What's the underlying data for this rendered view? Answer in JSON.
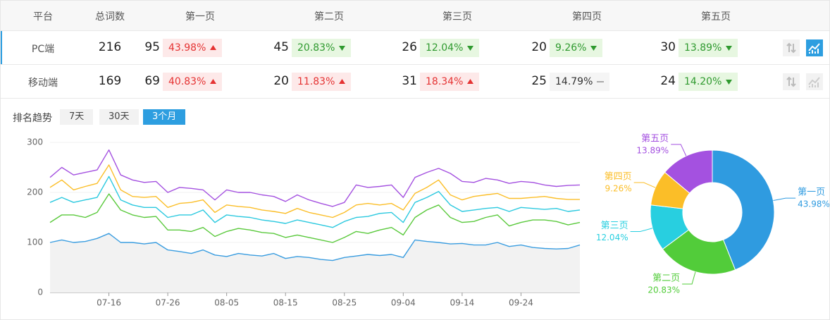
{
  "table": {
    "headers": [
      "平台",
      "总词数",
      "第一页",
      "第二页",
      "第三页",
      "第四页",
      "第五页"
    ],
    "selected_row": 0,
    "rows": [
      {
        "platform": "PC端",
        "total": 216,
        "pages": [
          {
            "count": 95,
            "pct": "43.98%",
            "trend": "up"
          },
          {
            "count": 45,
            "pct": "20.83%",
            "trend": "down"
          },
          {
            "count": 26,
            "pct": "12.04%",
            "trend": "down"
          },
          {
            "count": 20,
            "pct": "9.26%",
            "trend": "down"
          },
          {
            "count": 30,
            "pct": "13.89%",
            "trend": "down"
          }
        ]
      },
      {
        "platform": "移动端",
        "total": 169,
        "pages": [
          {
            "count": 69,
            "pct": "40.83%",
            "trend": "up"
          },
          {
            "count": 20,
            "pct": "11.83%",
            "trend": "up"
          },
          {
            "count": 31,
            "pct": "18.34%",
            "trend": "up"
          },
          {
            "count": 25,
            "pct": "14.79%",
            "trend": "flat"
          },
          {
            "count": 24,
            "pct": "14.20%",
            "trend": "down"
          }
        ]
      }
    ]
  },
  "trend": {
    "label": "排名趋势",
    "tabs": [
      "7天",
      "30天",
      "3个月"
    ],
    "active_tab": 2
  },
  "chart_data": [
    {
      "type": "line",
      "stacked": true,
      "grid": true,
      "area_color": "#f2f2f2",
      "categories": [
        null,
        null,
        null,
        null,
        null,
        "07-16",
        null,
        null,
        null,
        null,
        "07-26",
        null,
        null,
        null,
        null,
        "08-05",
        null,
        null,
        null,
        null,
        "08-15",
        null,
        null,
        null,
        null,
        "08-25",
        null,
        null,
        null,
        null,
        "09-04",
        null,
        null,
        null,
        null,
        "09-14",
        null,
        null,
        null,
        null,
        "09-24",
        null,
        null,
        null,
        null,
        null
      ],
      "ylim": [
        0,
        300
      ],
      "yticks": [
        0,
        100,
        200,
        300
      ],
      "series": [
        {
          "color": "#3a9de0",
          "values": [
            100,
            105,
            100,
            102,
            108,
            118,
            100,
            100,
            97,
            100,
            85,
            82,
            78,
            85,
            75,
            72,
            78,
            75,
            73,
            78,
            68,
            72,
            70,
            66,
            64,
            70,
            73,
            76,
            74,
            76,
            70,
            105,
            102,
            100,
            97,
            98,
            95,
            95,
            100,
            92,
            95,
            90,
            88,
            87,
            88,
            95
          ]
        },
        {
          "color": "#5ac93c",
          "values": [
            40,
            50,
            55,
            48,
            52,
            79,
            65,
            55,
            53,
            52,
            40,
            43,
            44,
            45,
            37,
            50,
            50,
            50,
            47,
            40,
            42,
            43,
            40,
            39,
            36,
            40,
            49,
            42,
            51,
            54,
            45,
            45,
            63,
            75,
            53,
            42,
            47,
            55,
            55,
            41,
            45,
            55,
            57,
            55,
            47,
            45
          ]
        },
        {
          "color": "#2bc9df",
          "values": [
            40,
            35,
            25,
            35,
            30,
            35,
            20,
            20,
            20,
            18,
            25,
            30,
            33,
            35,
            28,
            33,
            24,
            25,
            25,
            24,
            28,
            30,
            30,
            30,
            30,
            32,
            28,
            34,
            33,
            30,
            25,
            30,
            25,
            27,
            25,
            22,
            23,
            18,
            15,
            29,
            30,
            23,
            21,
            26,
            27,
            25
          ]
        },
        {
          "color": "#fbbe28",
          "values": [
            30,
            35,
            25,
            27,
            28,
            23,
            20,
            17,
            20,
            22,
            20,
            23,
            25,
            20,
            20,
            20,
            20,
            20,
            20,
            20,
            20,
            23,
            20,
            20,
            20,
            18,
            25,
            26,
            17,
            18,
            25,
            18,
            20,
            23,
            20,
            23,
            27,
            27,
            28,
            26,
            18,
            22,
            26,
            20,
            24,
            21
          ]
        },
        {
          "color": "#a451e0",
          "values": [
            20,
            25,
            30,
            28,
            27,
            30,
            30,
            33,
            30,
            30,
            30,
            32,
            28,
            20,
            25,
            30,
            28,
            30,
            30,
            30,
            24,
            27,
            25,
            23,
            22,
            20,
            40,
            32,
            37,
            37,
            25,
            32,
            30,
            23,
            43,
            37,
            28,
            33,
            27,
            30,
            34,
            30,
            23,
            24,
            28,
            29
          ]
        }
      ]
    },
    {
      "type": "pie",
      "donut": true,
      "categories": [
        "第一页",
        "第二页",
        "第三页",
        "第四页",
        "第五页"
      ],
      "values": [
        43.98,
        20.83,
        12.04,
        9.26,
        13.89
      ],
      "value_labels": [
        "43.98%",
        "20.83%",
        "12.04%",
        "9.26%",
        "13.89%"
      ],
      "colors": [
        "#2f9be0",
        "#52cc3a",
        "#28cfe0",
        "#fbbe28",
        "#a451e0"
      ]
    }
  ]
}
